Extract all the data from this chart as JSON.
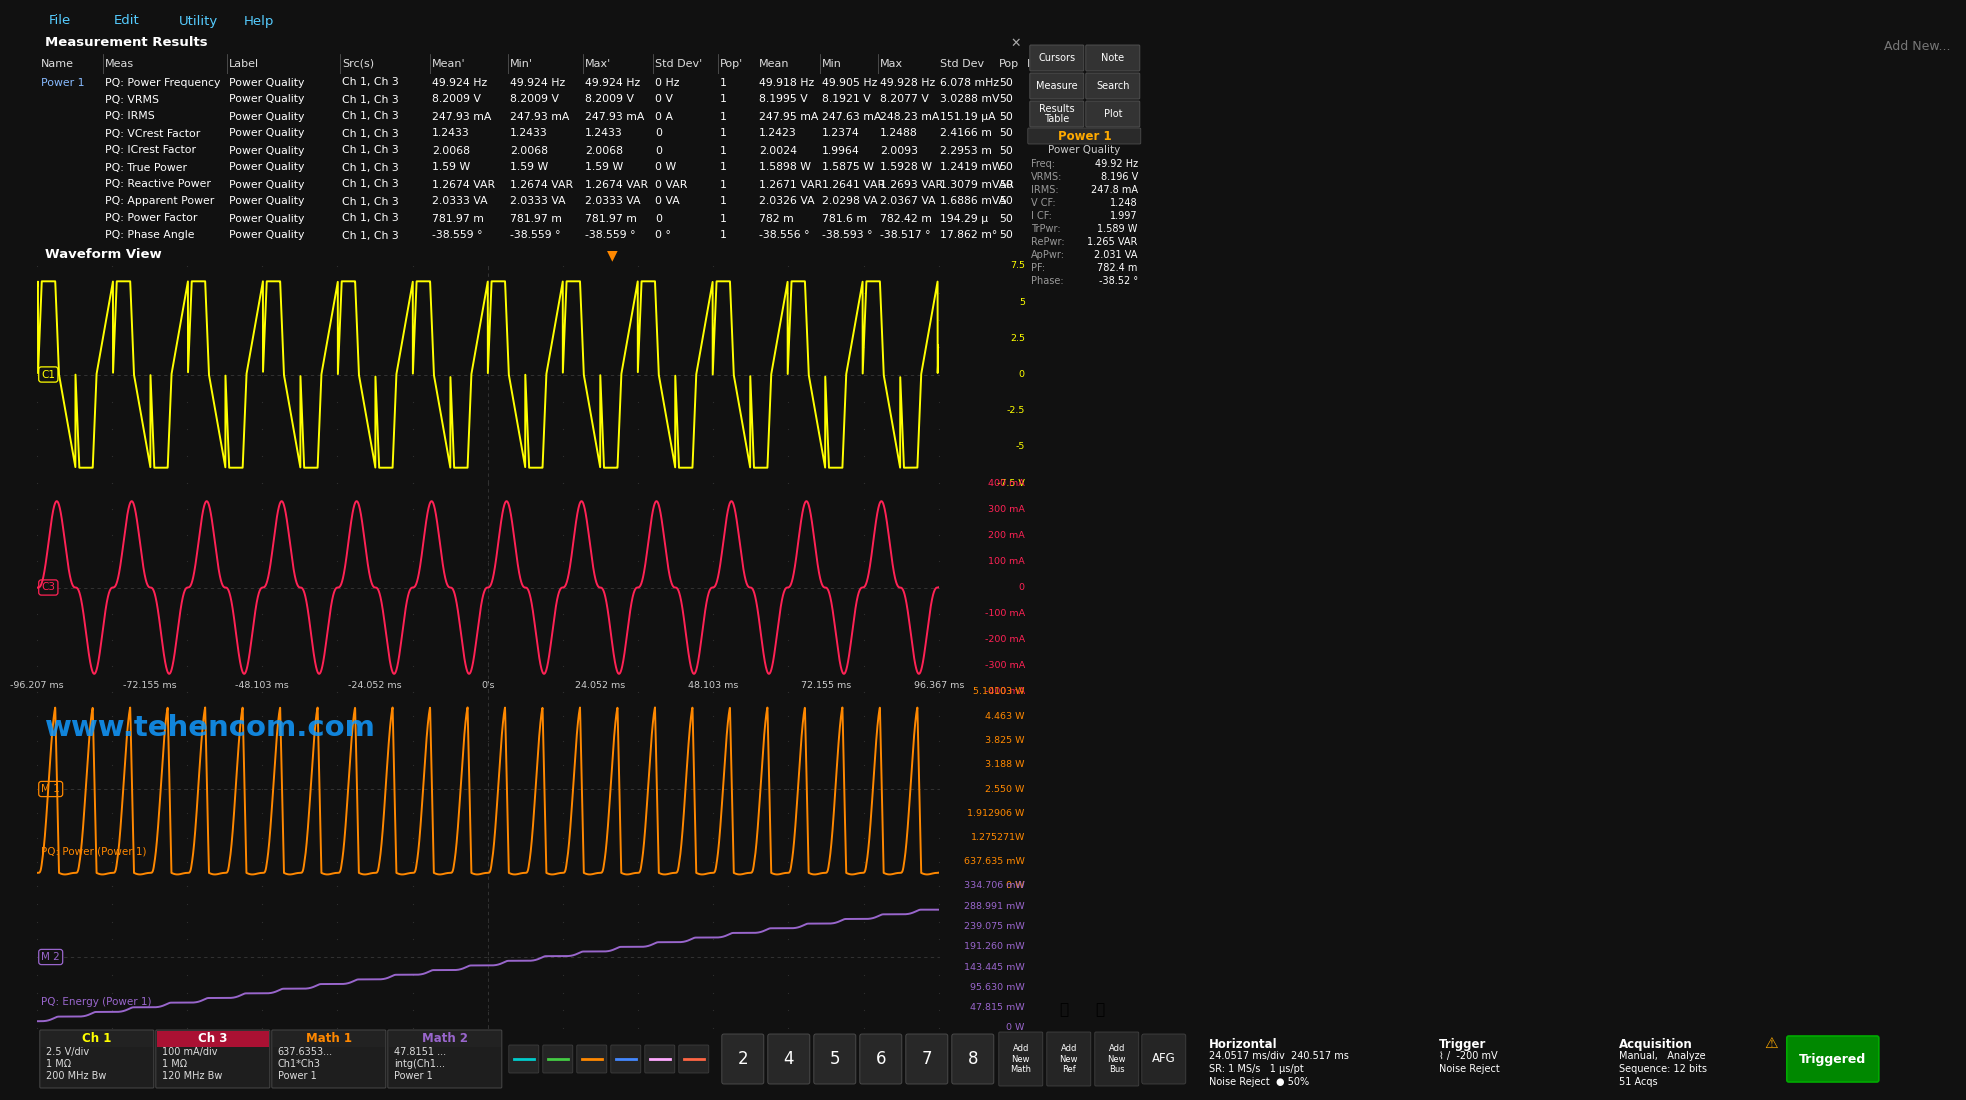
{
  "bg_color": "#111111",
  "menu_bar_color": "#1e1e1e",
  "meas_header_color": "#2d2d2d",
  "col_header_color": "#404040",
  "row_even_color": "#1a1a1a",
  "row_odd_color": "#141414",
  "wv_header_color": "#2d2d2d",
  "wv_bg_color": "#000000",
  "right_panel_color": "#1a1a1a",
  "far_right_color": "#0d0d0d",
  "bottom_bar_color": "#1a1a1a",
  "text_color": "#ffffff",
  "menu_text_color": "#55ccff",
  "title_text": "Measurement Results",
  "wv_title": "Waveform View",
  "menu_items": [
    "File",
    "Edit",
    "Utility",
    "Help"
  ],
  "col_headers_left": [
    "Name",
    "Meas",
    "Label",
    "Src(s)",
    "Mean'",
    "Min'",
    "Max'",
    "Std Dev'",
    "Pop'"
  ],
  "col_headers_right": [
    "Mean",
    "Min",
    "Max",
    "Std Dev",
    "Pop",
    "Info"
  ],
  "col_x_left": [
    4,
    68,
    192,
    305,
    395,
    473,
    548,
    618,
    683
  ],
  "col_x_right": [
    722,
    785,
    843,
    903,
    962,
    990
  ],
  "measurements": [
    [
      "Power 1",
      "PQ: Power Frequency",
      "Power Quality",
      "Ch 1, Ch 3",
      "49.924 Hz",
      "49.924 Hz",
      "49.924 Hz",
      "0 Hz",
      "1",
      "49.918 Hz",
      "49.905 Hz",
      "49.928 Hz",
      "6.078 mHz",
      "50",
      ""
    ],
    [
      "",
      "PQ: VRMS",
      "Power Quality",
      "Ch 1, Ch 3",
      "8.2009 V",
      "8.2009 V",
      "8.2009 V",
      "0 V",
      "1",
      "8.1995 V",
      "8.1921 V",
      "8.2077 V",
      "3.0288 mV",
      "50",
      ""
    ],
    [
      "",
      "PQ: IRMS",
      "Power Quality",
      "Ch 1, Ch 3",
      "247.93 mA",
      "247.93 mA",
      "247.93 mA",
      "0 A",
      "1",
      "247.95 mA",
      "247.63 mA",
      "248.23 mA",
      "151.19 µA",
      "50",
      ""
    ],
    [
      "",
      "PQ: VCrest Factor",
      "Power Quality",
      "Ch 1, Ch 3",
      "1.2433",
      "1.2433",
      "1.2433",
      "0",
      "1",
      "1.2423",
      "1.2374",
      "1.2488",
      "2.4166 m",
      "50",
      ""
    ],
    [
      "",
      "PQ: ICrest Factor",
      "Power Quality",
      "Ch 1, Ch 3",
      "2.0068",
      "2.0068",
      "2.0068",
      "0",
      "1",
      "2.0024",
      "1.9964",
      "2.0093",
      "2.2953 m",
      "50",
      ""
    ],
    [
      "",
      "PQ: True Power",
      "Power Quality",
      "Ch 1, Ch 3",
      "1.59 W",
      "1.59 W",
      "1.59 W",
      "0 W",
      "1",
      "1.5898 W",
      "1.5875 W",
      "1.5928 W",
      "1.2419 mW",
      "50",
      ""
    ],
    [
      "",
      "PQ: Reactive Power",
      "Power Quality",
      "Ch 1, Ch 3",
      "1.2674 VAR",
      "1.2674 VAR",
      "1.2674 VAR",
      "0 VAR",
      "1",
      "1.2671 VAR",
      "1.2641 VAR",
      "1.2693 VAR",
      "1.3079 mVAR",
      "50",
      ""
    ],
    [
      "",
      "PQ: Apparent Power",
      "Power Quality",
      "Ch 1, Ch 3",
      "2.0333 VA",
      "2.0333 VA",
      "2.0333 VA",
      "0 VA",
      "1",
      "2.0326 VA",
      "2.0298 VA",
      "2.0367 VA",
      "1.6886 mVA",
      "50",
      ""
    ],
    [
      "",
      "PQ: Power Factor",
      "Power Quality",
      "Ch 1, Ch 3",
      "781.97 m",
      "781.97 m",
      "781.97 m",
      "0",
      "1",
      "782 m",
      "781.6 m",
      "782.42 m",
      "194.29 µ",
      "50",
      ""
    ],
    [
      "",
      "PQ: Phase Angle",
      "Power Quality",
      "Ch 1, Ch 3",
      "-38.559 °",
      "-38.559 °",
      "-38.559 °",
      "0 °",
      "1",
      "-38.556 °",
      "-38.593 °",
      "-38.517 °",
      "17.862 m°",
      "50",
      ""
    ]
  ],
  "ch1_color": "#ffff00",
  "ch3_color": "#ff2255",
  "math1_color": "#ff8800",
  "math2_color": "#9966cc",
  "grid_dot_color": "#303030",
  "grid_line_color": "#383838",
  "time_labels": [
    "-96.207 ms",
    "-72.155 ms",
    "-48.103 ms",
    "-24.052 ms",
    "0's",
    "24.052 ms",
    "48.103 ms",
    "72.155 ms",
    "96.367 ms"
  ],
  "right_scale_ch1": [
    "7.5",
    "5",
    "2.5",
    "0",
    "-2.5",
    "-5",
    "-7.5 V"
  ],
  "right_scale_ch3": [
    "400 mA",
    "300 mA",
    "200 mA",
    "100 mA",
    "0",
    "-100 mA",
    "-200 mA",
    "-300 mA",
    "-400 mA"
  ],
  "right_scale_math1": [
    "5.10103 W",
    "4.463 W",
    "3.825 W",
    "3.188 W",
    "2.550 W",
    "1.912906 W",
    "1.275271W",
    "637.635 mW",
    "0 W"
  ],
  "right_scale_math2": [
    "334.706 mW",
    "288.991 mW",
    "239.075 mW",
    "191.260 mW",
    "143.445 mW",
    "95.630 mW",
    "47.815 mW",
    "0 W"
  ],
  "watermark": "www.tehencom.com",
  "right_panel_buttons": [
    [
      "Cursors",
      "Note"
    ],
    [
      "Measure",
      "Search"
    ],
    [
      "Results\nTable",
      "Plot"
    ]
  ],
  "power1_label": "Power 1",
  "power1_sublabel": "Power Quality",
  "power1_readout": [
    [
      "Freq:",
      "49.92 Hz"
    ],
    [
      "VRMS:",
      "8.196 V"
    ],
    [
      "IRMS:",
      "247.8 mA"
    ],
    [
      "V CF:",
      "1.248"
    ],
    [
      "I CF:",
      "1.997"
    ],
    [
      "TrPwr:",
      "1.589 W"
    ],
    [
      "RePwr:",
      "1.265 VAR"
    ],
    [
      "ApPwr:",
      "2.031 VA"
    ],
    [
      "PF:",
      "782.4 m"
    ],
    [
      "Phase:",
      "-38.52 °"
    ]
  ],
  "ch_boxes": [
    {
      "label": "Ch 1",
      "lcolor": "#ffff00",
      "hbg": "#222222",
      "lines": [
        "2.5 V/div",
        "1 MΩ",
        "200 MHz Bw"
      ]
    },
    {
      "label": "Ch 3",
      "lcolor": "#ffffff",
      "hbg": "#aa1133",
      "lines": [
        "100 mA/div",
        "1 MΩ",
        "120 MHz Bw"
      ]
    },
    {
      "label": "Math 1",
      "lcolor": "#ff8800",
      "hbg": "#222222",
      "lines": [
        "637.6353...",
        "Ch1*Ch3",
        "Power 1"
      ]
    },
    {
      "label": "Math 2",
      "lcolor": "#9966cc",
      "hbg": "#222222",
      "lines": [
        "47.8151 ...",
        "intg(Ch1...",
        "Power 1"
      ]
    }
  ],
  "num_buttons": [
    "2",
    "4",
    "5",
    "6",
    "7",
    "8"
  ],
  "horiz_text": [
    "Horizontal",
    "24.0517 ms/div  240.517 ms",
    "SR: 1 MS/s   1 µs/pt",
    "Noise Reject  ● 50%"
  ],
  "trigger_text": [
    "Trigger",
    "⌇ /  -200 mV",
    "Noise Reject"
  ],
  "acq_text": [
    "Acquisition",
    "Manual,   Analyze",
    "Sequence: 12 bits",
    "51 Acqs"
  ],
  "add_new_label": "Add New..."
}
